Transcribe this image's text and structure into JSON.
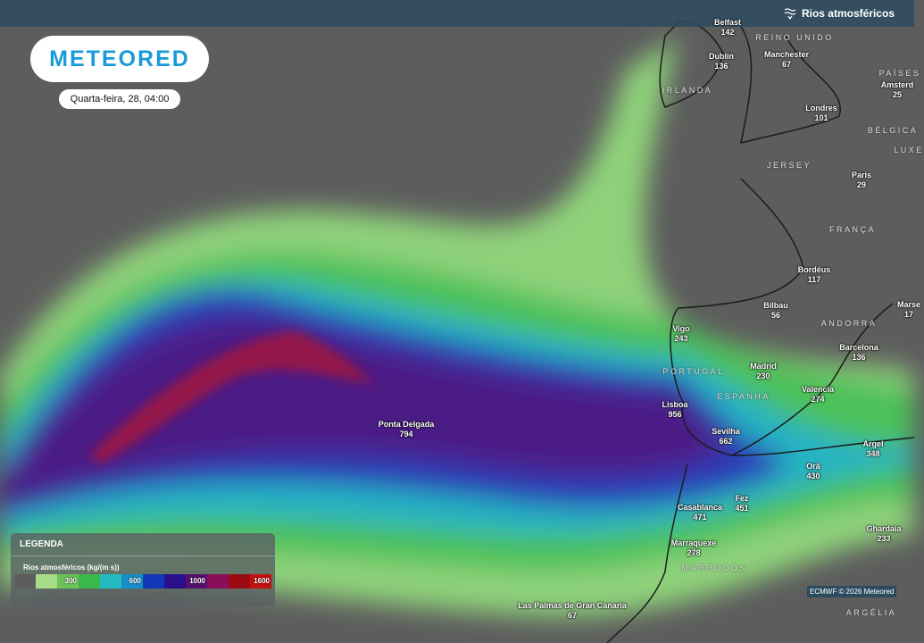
{
  "header": {
    "layer_title": "Rios atmosféricos",
    "layer_icon": "wind-wave-icon"
  },
  "logo": "METEORED",
  "date": "Quarta-feira, 28, 04:00",
  "cities": [
    {
      "name": "Belfast",
      "value": "142"
    },
    {
      "name": "Dublin",
      "value": "136"
    },
    {
      "name": "Manchester",
      "value": "67"
    },
    {
      "name": "Londres",
      "value": "101"
    },
    {
      "name": "Amsterd",
      "value": "25"
    },
    {
      "name": "Paris",
      "value": "29"
    },
    {
      "name": "Bordéus",
      "value": "117"
    },
    {
      "name": "Bilbau",
      "value": "56"
    },
    {
      "name": "Marse",
      "value": "17"
    },
    {
      "name": "Vigo",
      "value": "243"
    },
    {
      "name": "Barcelona",
      "value": "136"
    },
    {
      "name": "Madrid",
      "value": "230"
    },
    {
      "name": "Valencia",
      "value": "274"
    },
    {
      "name": "Lisboa",
      "value": "956"
    },
    {
      "name": "Sevilha",
      "value": "662"
    },
    {
      "name": "Ponta Delgada",
      "value": "794"
    },
    {
      "name": "Argel",
      "value": "348"
    },
    {
      "name": "Orã",
      "value": "430"
    },
    {
      "name": "Casablanca",
      "value": "471"
    },
    {
      "name": "Fez",
      "value": "451"
    },
    {
      "name": "Marraquexe",
      "value": "278"
    },
    {
      "name": "Ghardaia",
      "value": "233"
    },
    {
      "name": "Las Palmas de Gran Canaria",
      "value": "67"
    }
  ],
  "countries": [
    "REINO UNIDO",
    "IRLANDA",
    "PAÍSES",
    "BÉLGICA",
    "LUXE",
    "JERSEY",
    "FRANÇA",
    "ANDORRA",
    "PORTUGAL",
    "ESPANHA",
    "MARROCOS",
    "ARGÉLIA"
  ],
  "legend": {
    "title": "LEGENDA",
    "subtitle": "Rios atmosféricos (kg/(m s))",
    "bins": [
      {
        "color": "#5d5d5d",
        "label": ""
      },
      {
        "color": "#a6dc88",
        "label": ""
      },
      {
        "color": "#6cc35a",
        "label": "300"
      },
      {
        "color": "#3bb84a",
        "label": ""
      },
      {
        "color": "#25b9c0",
        "label": ""
      },
      {
        "color": "#168fc6",
        "label": "600"
      },
      {
        "color": "#1238b8",
        "label": ""
      },
      {
        "color": "#2a0f8a",
        "label": ""
      },
      {
        "color": "#54116e",
        "label": "1000"
      },
      {
        "color": "#8a0e5a",
        "label": ""
      },
      {
        "color": "#9c0b12",
        "label": ""
      },
      {
        "color": "#c4100f",
        "label": "1600"
      }
    ]
  },
  "credit": "ECMWF © 2026 Meteored"
}
